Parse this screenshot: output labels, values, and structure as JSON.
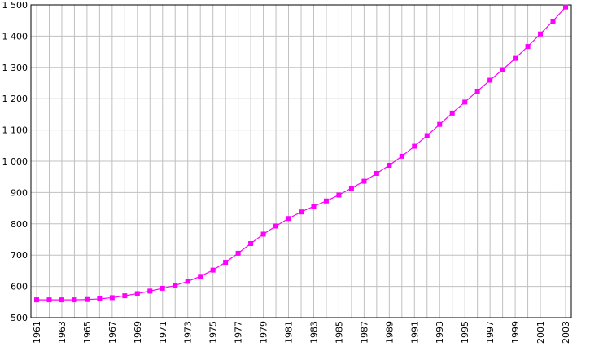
{
  "chart_data": {
    "type": "line",
    "title": "",
    "xlabel": "",
    "ylabel": "",
    "x": [
      1961,
      1962,
      1963,
      1964,
      1965,
      1966,
      1967,
      1968,
      1969,
      1970,
      1971,
      1972,
      1973,
      1974,
      1975,
      1976,
      1977,
      1978,
      1979,
      1980,
      1981,
      1982,
      1983,
      1984,
      1985,
      1986,
      1987,
      1988,
      1989,
      1990,
      1991,
      1992,
      1993,
      1994,
      1995,
      1996,
      1997,
      1998,
      1999,
      2000,
      2001,
      2002,
      2003
    ],
    "series": [
      {
        "values": [
          557,
          557,
          557,
          557,
          558,
          560,
          564,
          570,
          577,
          585,
          594,
          603,
          616,
          632,
          652,
          677,
          706,
          737,
          767,
          793,
          817,
          838,
          856,
          873,
          892,
          914,
          936,
          961,
          987,
          1016,
          1048,
          1082,
          1118,
          1154,
          1189,
          1224,
          1259,
          1293,
          1329,
          1367,
          1407,
          1448,
          1493
        ]
      }
    ],
    "ylim": [
      500,
      1500
    ],
    "xlim": [
      1961,
      2003
    ],
    "y_ticks": [
      "500",
      "600",
      "700",
      "800",
      "900",
      "1 000",
      "1 100",
      "1 200",
      "1 300",
      "1 400",
      "1 500"
    ],
    "x_ticks": [
      "1961",
      "1963",
      "1965",
      "1967",
      "1969",
      "1971",
      "1973",
      "1975",
      "1977",
      "1979",
      "1981",
      "1983",
      "1985",
      "1987",
      "1989",
      "1991",
      "1993",
      "1995",
      "1997",
      "1999",
      "2001",
      "2003"
    ],
    "grid": true,
    "legend": "none",
    "series_color": "#ff00ff",
    "grid_color": "#c0c0c0"
  }
}
